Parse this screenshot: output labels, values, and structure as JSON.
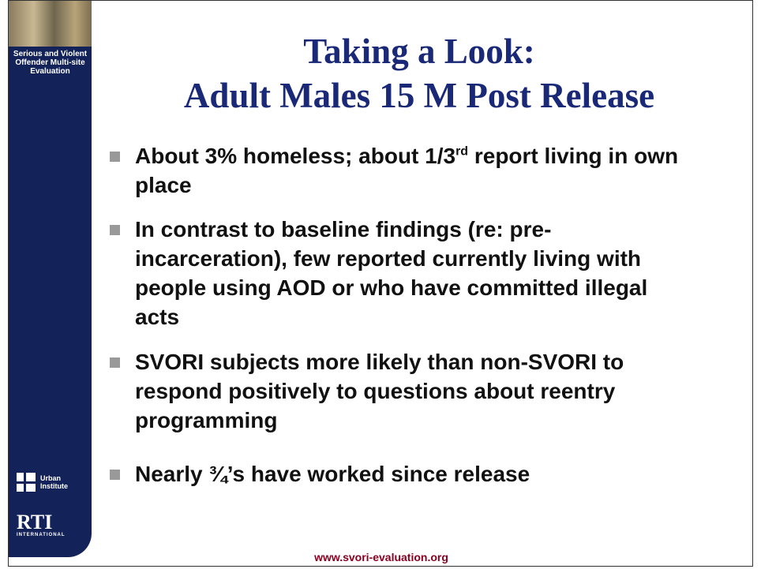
{
  "sidebar": {
    "program": "Serious and Violent Offender Multi-site Evaluation",
    "logos": [
      {
        "name": "Urban Institute"
      },
      {
        "name": "RTI",
        "sub": "INTERNATIONAL"
      }
    ]
  },
  "header": {
    "title": [
      "Taking a Look:",
      "Adult Males 15 M Post Release"
    ]
  },
  "bullets": [
    [
      "About 3% homeless; about 1/3",
      "rd",
      " report living in own place"
    ],
    [
      "In contrast to baseline findings (re: pre-incarceration), few reported currently living with people using AOD or who have committed illegal acts"
    ],
    [
      "SVORI subjects more likely than non-SVORI to respond positively to questions about reentry programming"
    ],
    [
      "Nearly ¾’s have worked since release"
    ]
  ],
  "footer": {
    "url": "www.svori-evaluation.org"
  }
}
